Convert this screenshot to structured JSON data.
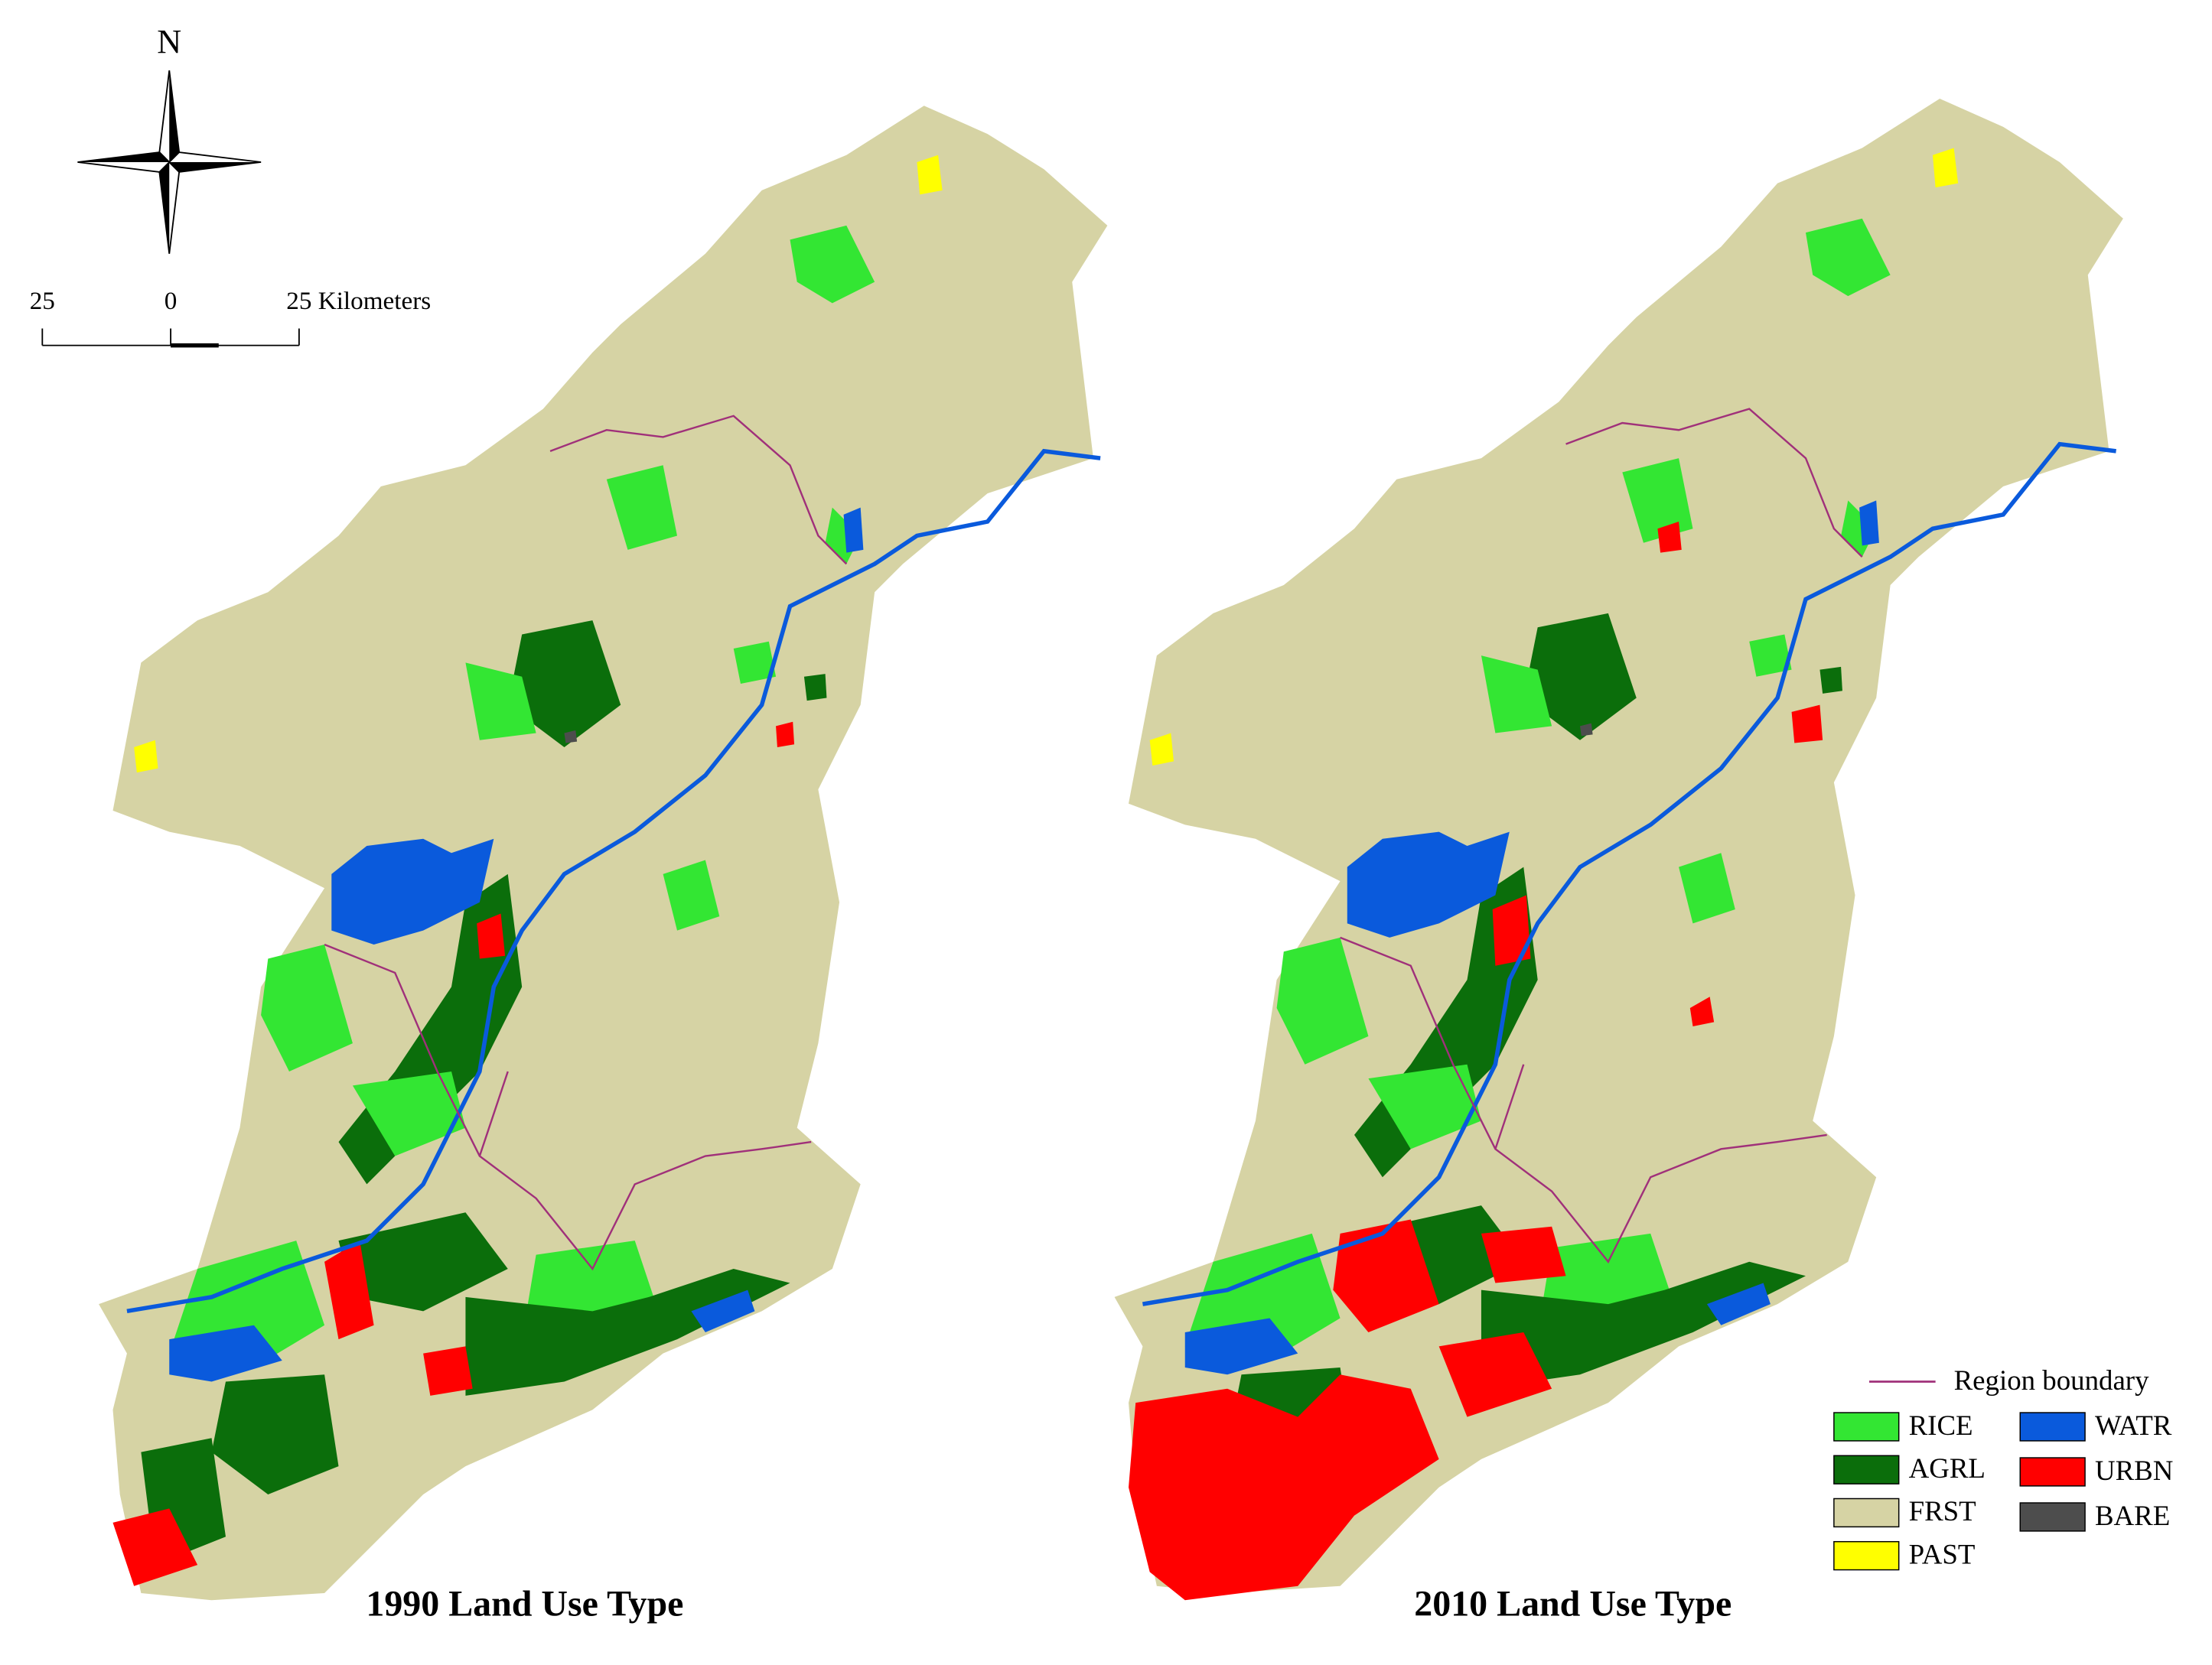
{
  "compass": {
    "label": "N"
  },
  "scale_bar": {
    "labels": [
      "25",
      "0",
      "25 Kilometers"
    ]
  },
  "maps": [
    {
      "title": "1990 Land Use Type"
    },
    {
      "title": "2010 Land Use Type"
    }
  ],
  "legend": {
    "boundary": {
      "label": "Region boundary",
      "color": "#a0307a"
    },
    "items": [
      {
        "label": "RICE",
        "color": "#33e633"
      },
      {
        "label": "AGRL",
        "color": "#0b6e0b"
      },
      {
        "label": "FRST",
        "color": "#d6d3a4"
      },
      {
        "label": "PAST",
        "color": "#ffff00"
      },
      {
        "label": "WATR",
        "color": "#0a5adc"
      },
      {
        "label": "URBN",
        "color": "#ff0000"
      },
      {
        "label": "BARE",
        "color": "#4d4d4d"
      }
    ]
  }
}
